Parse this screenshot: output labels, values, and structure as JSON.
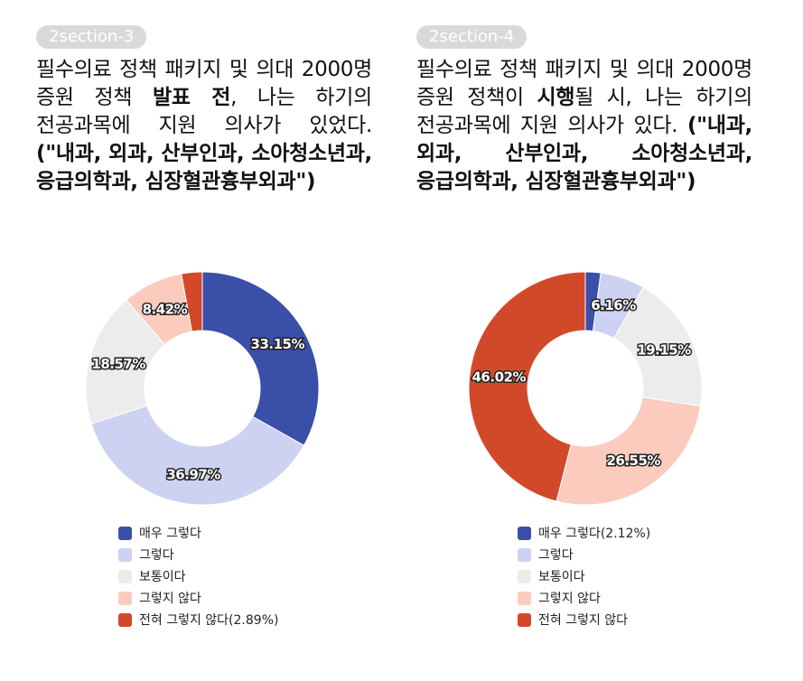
{
  "panels": [
    {
      "tag": "2section-3",
      "question": {
        "p1": "필수의료 정책 패키지 및 의대 2000명 증원 정책 ",
        "b1": "발표 전",
        "p2": ", 나는 하기의 전공과목에 지원 의사가 있었다. ",
        "b2": "(\"내과, 외과, 산부인과, 소아청소년과, 응급의학과, 심장혈관흉부외과\")"
      }
    },
    {
      "tag": "2section-4",
      "question": {
        "p1": "필수의료 정책 패키지 및 의대 2000명 증원 정책이 ",
        "b1": "시행",
        "p2": "될 시, 나는 하기의 전공과목에 지원 의사가 있다. ",
        "b2": "(\"내과, 외과, 산부인과, 소아청소년과, 응급의학과, 심장혈관흉부외과\")"
      }
    }
  ],
  "chart_data": [
    {
      "type": "pie",
      "donut": true,
      "categories": [
        "매우 그렇다",
        "그렇다",
        "보통이다",
        "그렇지 않다",
        "전혀 그렇지 않다"
      ],
      "values": [
        33.15,
        36.97,
        18.57,
        8.42,
        2.89
      ],
      "slice_labels": [
        "33.15%",
        "36.97%",
        "18.57%",
        "8.42%",
        ""
      ],
      "legend_labels": [
        "매우 그렇다",
        "그렇다",
        "보통이다",
        "그렇지 않다",
        "전혀 그렇지 않다(2.89%)"
      ],
      "colors": [
        "#3a4fa8",
        "#cdd2f2",
        "#ececec",
        "#fbcbbe",
        "#d2492a"
      ],
      "legend_position": "bottom"
    },
    {
      "type": "pie",
      "donut": true,
      "categories": [
        "매우 그렇다",
        "그렇다",
        "보통이다",
        "그렇지 않다",
        "전혀 그렇지 않다"
      ],
      "values": [
        2.12,
        6.16,
        19.15,
        26.55,
        46.02
      ],
      "slice_labels": [
        "",
        "6.16%",
        "19.15%",
        "26.55%",
        "46.02%"
      ],
      "legend_labels": [
        "매우 그렇다(2.12%)",
        "그렇다",
        "보통이다",
        "그렇지 않다",
        "전혀 그렇지 않다"
      ],
      "colors": [
        "#3a4fa8",
        "#cdd2f2",
        "#ececec",
        "#fbcbbe",
        "#d2492a"
      ],
      "legend_position": "bottom"
    }
  ]
}
